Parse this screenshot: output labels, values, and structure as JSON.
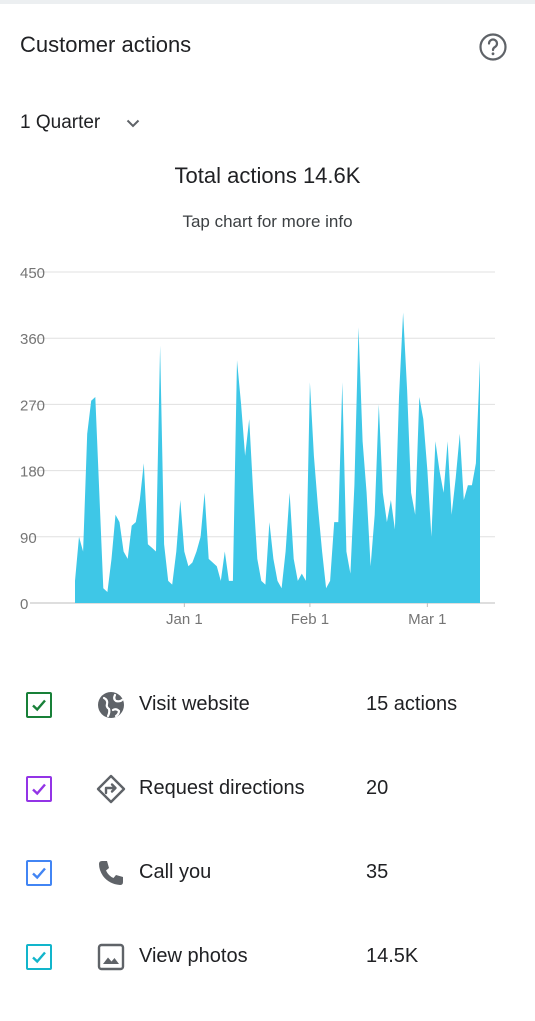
{
  "header": {
    "title": "Customer actions",
    "help_icon": "help-circle-icon"
  },
  "period": {
    "label": "1 Quarter",
    "dropdown_icon": "chevron-down-icon"
  },
  "summary": {
    "total": "Total actions 14.6K",
    "hint": "Tap chart for more info"
  },
  "chart_data": {
    "type": "area",
    "title": "",
    "xlabel": "",
    "ylabel": "",
    "ylim": [
      0,
      450
    ],
    "yticks": [
      0,
      90,
      180,
      270,
      360,
      450
    ],
    "grid": true,
    "color": "#3ec7e7",
    "x_tick_labels": [
      {
        "label": "Jan 1",
        "day": 27
      },
      {
        "label": "Feb 1",
        "day": 58
      },
      {
        "label": "Mar 1",
        "day": 87
      }
    ],
    "values": [
      30,
      90,
      70,
      230,
      275,
      280,
      150,
      20,
      15,
      60,
      120,
      110,
      70,
      60,
      105,
      110,
      140,
      190,
      80,
      75,
      70,
      350,
      80,
      30,
      25,
      70,
      140,
      70,
      50,
      55,
      70,
      90,
      150,
      60,
      55,
      50,
      30,
      70,
      30,
      30,
      330,
      270,
      200,
      250,
      150,
      60,
      30,
      25,
      110,
      60,
      30,
      20,
      70,
      150,
      60,
      30,
      40,
      30,
      300,
      200,
      130,
      70,
      20,
      30,
      110,
      110,
      300,
      70,
      40,
      160,
      375,
      220,
      150,
      50,
      120,
      270,
      150,
      110,
      140,
      100,
      280,
      395,
      290,
      150,
      120,
      280,
      250,
      180,
      90,
      220,
      180,
      150,
      220,
      120,
      170,
      230,
      140,
      160,
      160,
      190,
      330
    ]
  },
  "legend": [
    {
      "label": "Visit website",
      "value": "15 actions",
      "icon": "globe-icon",
      "color": "#188038"
    },
    {
      "label": "Request directions",
      "value": "20",
      "icon": "directions-icon",
      "color": "#9334e6"
    },
    {
      "label": "Call you",
      "value": "35",
      "icon": "phone-icon",
      "color": "#4285f4"
    },
    {
      "label": "View photos",
      "value": "14.5K",
      "icon": "photo-icon",
      "color": "#12b5cb"
    }
  ]
}
